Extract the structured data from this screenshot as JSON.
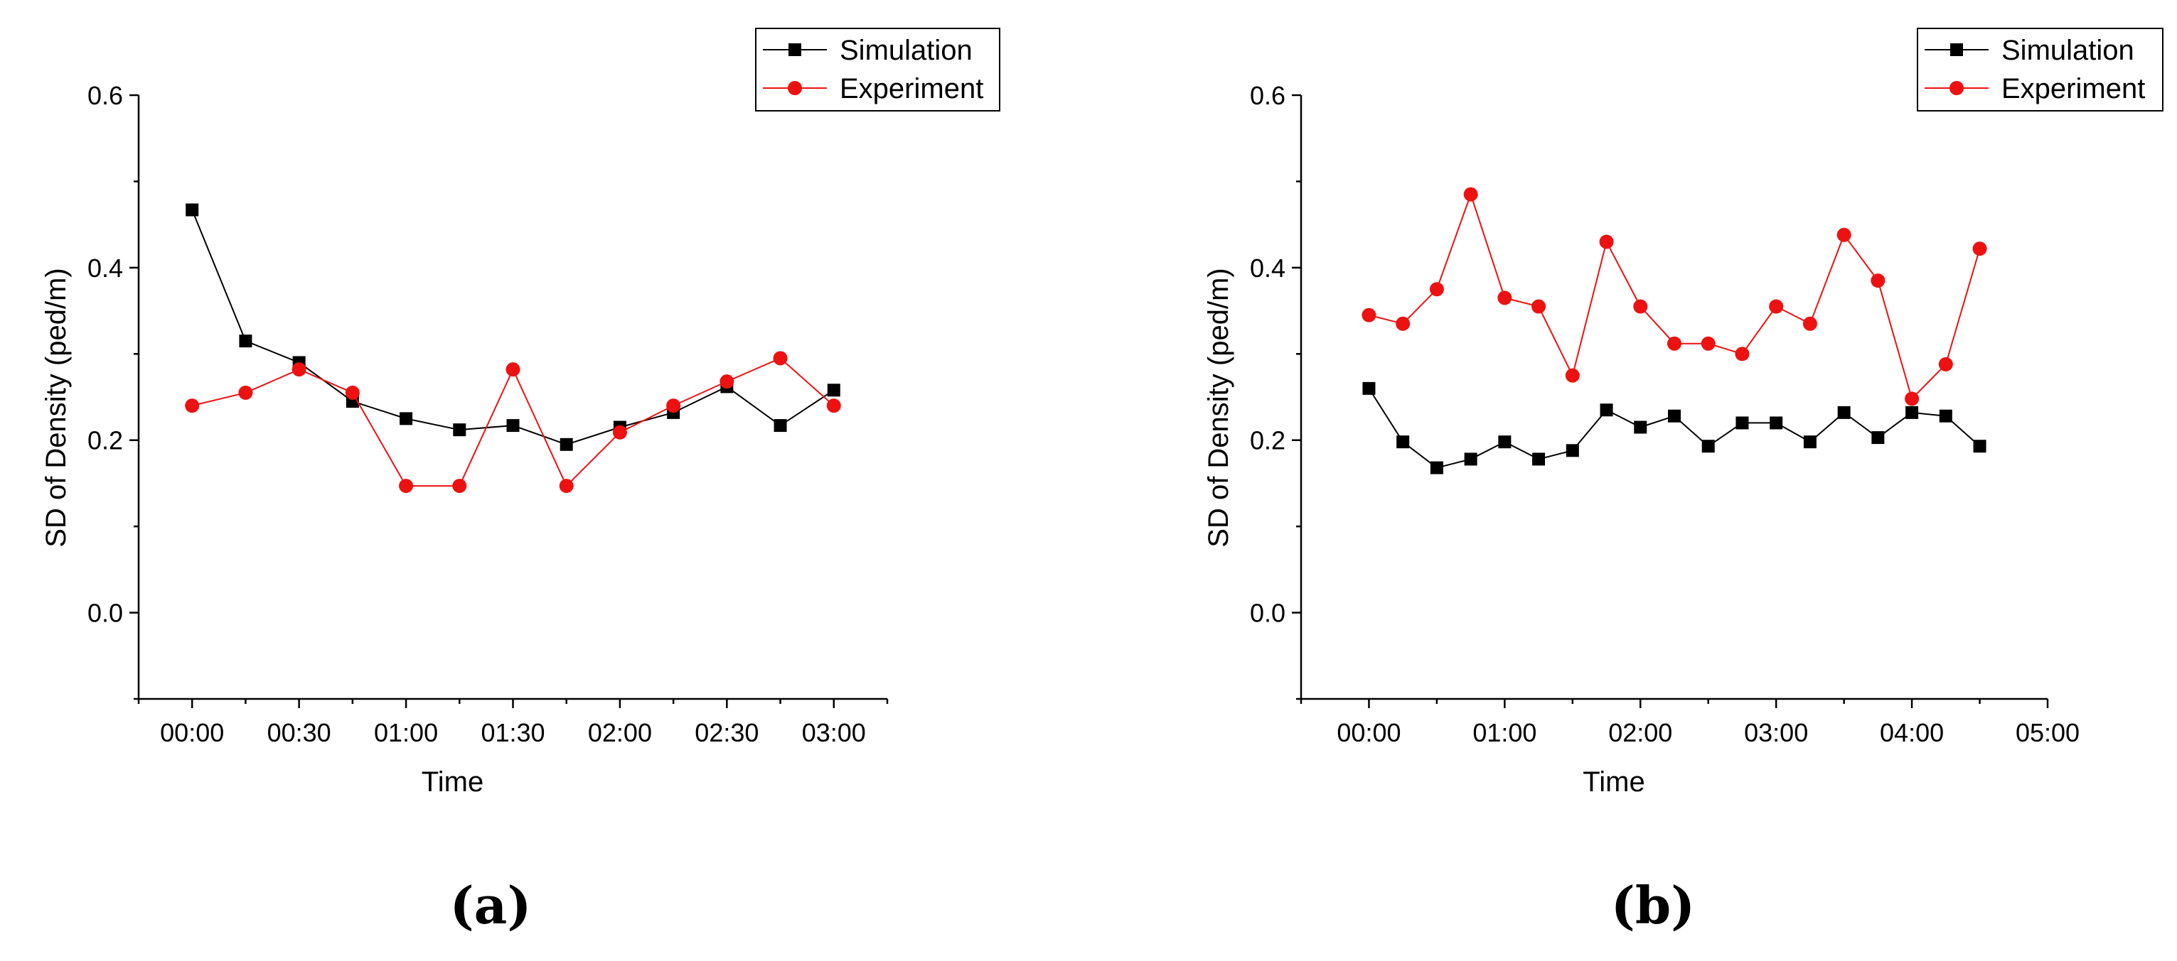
{
  "chart_data": [
    {
      "type": "line",
      "panel_label": "(a)",
      "xlabel": "Time",
      "ylabel": "SD of Density (ped/m)",
      "ylim": [
        -0.1,
        0.6
      ],
      "yticks": [
        0.0,
        0.2,
        0.4,
        0.6
      ],
      "ytick_labels": [
        "0.0",
        "0.2",
        "0.4",
        "0.6"
      ],
      "xlim": [
        -15,
        195
      ],
      "xticks": [
        0,
        30,
        60,
        90,
        120,
        150,
        180
      ],
      "xtick_labels": [
        "00:00",
        "00:30",
        "01:00",
        "01:30",
        "02:00",
        "02:30",
        "03:00"
      ],
      "x_minor_ticks": [
        -15,
        15,
        45,
        75,
        105,
        135,
        165,
        195
      ],
      "legend": {
        "placement": "top-right",
        "entries": [
          "Simulation",
          "Experiment"
        ]
      },
      "series": [
        {
          "name": "Simulation",
          "color": "#000000",
          "marker": "square",
          "x": [
            0,
            15,
            30,
            45,
            60,
            75,
            90,
            105,
            120,
            135,
            150,
            165,
            180
          ],
          "values": [
            0.467,
            0.315,
            0.29,
            0.245,
            0.225,
            0.212,
            0.217,
            0.195,
            0.215,
            0.232,
            0.262,
            0.217,
            0.258
          ]
        },
        {
          "name": "Experiment",
          "color": "#ee1111",
          "marker": "circle",
          "x": [
            0,
            15,
            30,
            45,
            60,
            75,
            90,
            105,
            120,
            135,
            150,
            165,
            180
          ],
          "values": [
            0.24,
            0.255,
            0.282,
            0.255,
            0.147,
            0.147,
            0.282,
            0.147,
            0.209,
            0.24,
            0.268,
            0.295,
            0.24
          ]
        }
      ]
    },
    {
      "type": "line",
      "panel_label": "(b)",
      "xlabel": "Time",
      "ylabel": "SD of Density (ped/m)",
      "ylim": [
        -0.1,
        0.6
      ],
      "yticks": [
        0.0,
        0.2,
        0.4,
        0.6
      ],
      "ytick_labels": [
        "0.0",
        "0.2",
        "0.4",
        "0.6"
      ],
      "xlim": [
        -30,
        300
      ],
      "xticks": [
        0,
        60,
        120,
        180,
        240,
        300
      ],
      "xtick_labels": [
        "00:00",
        "01:00",
        "02:00",
        "03:00",
        "04:00",
        "05:00"
      ],
      "x_minor_ticks": [
        -30,
        30,
        90,
        150,
        210,
        270
      ],
      "legend": {
        "placement": "top-right",
        "entries": [
          "Simulation",
          "Experiment"
        ]
      },
      "series": [
        {
          "name": "Simulation",
          "color": "#000000",
          "marker": "square",
          "x": [
            0,
            15,
            30,
            45,
            60,
            75,
            90,
            105,
            120,
            135,
            150,
            165,
            180,
            195,
            210,
            225,
            240,
            255,
            270
          ],
          "values": [
            0.26,
            0.198,
            0.168,
            0.178,
            0.198,
            0.178,
            0.188,
            0.235,
            0.215,
            0.228,
            0.193,
            0.22,
            0.22,
            0.198,
            0.232,
            0.203,
            0.232,
            0.228,
            0.193
          ]
        },
        {
          "name": "Experiment",
          "color": "#ee1111",
          "marker": "circle",
          "x": [
            0,
            15,
            30,
            45,
            60,
            75,
            90,
            105,
            120,
            135,
            150,
            165,
            180,
            195,
            210,
            225,
            240,
            255,
            270
          ],
          "values": [
            0.345,
            0.335,
            0.375,
            0.485,
            0.365,
            0.355,
            0.275,
            0.43,
            0.355,
            0.312,
            0.312,
            0.3,
            0.355,
            0.335,
            0.438,
            0.385,
            0.248,
            0.288,
            0.422
          ]
        }
      ]
    }
  ]
}
